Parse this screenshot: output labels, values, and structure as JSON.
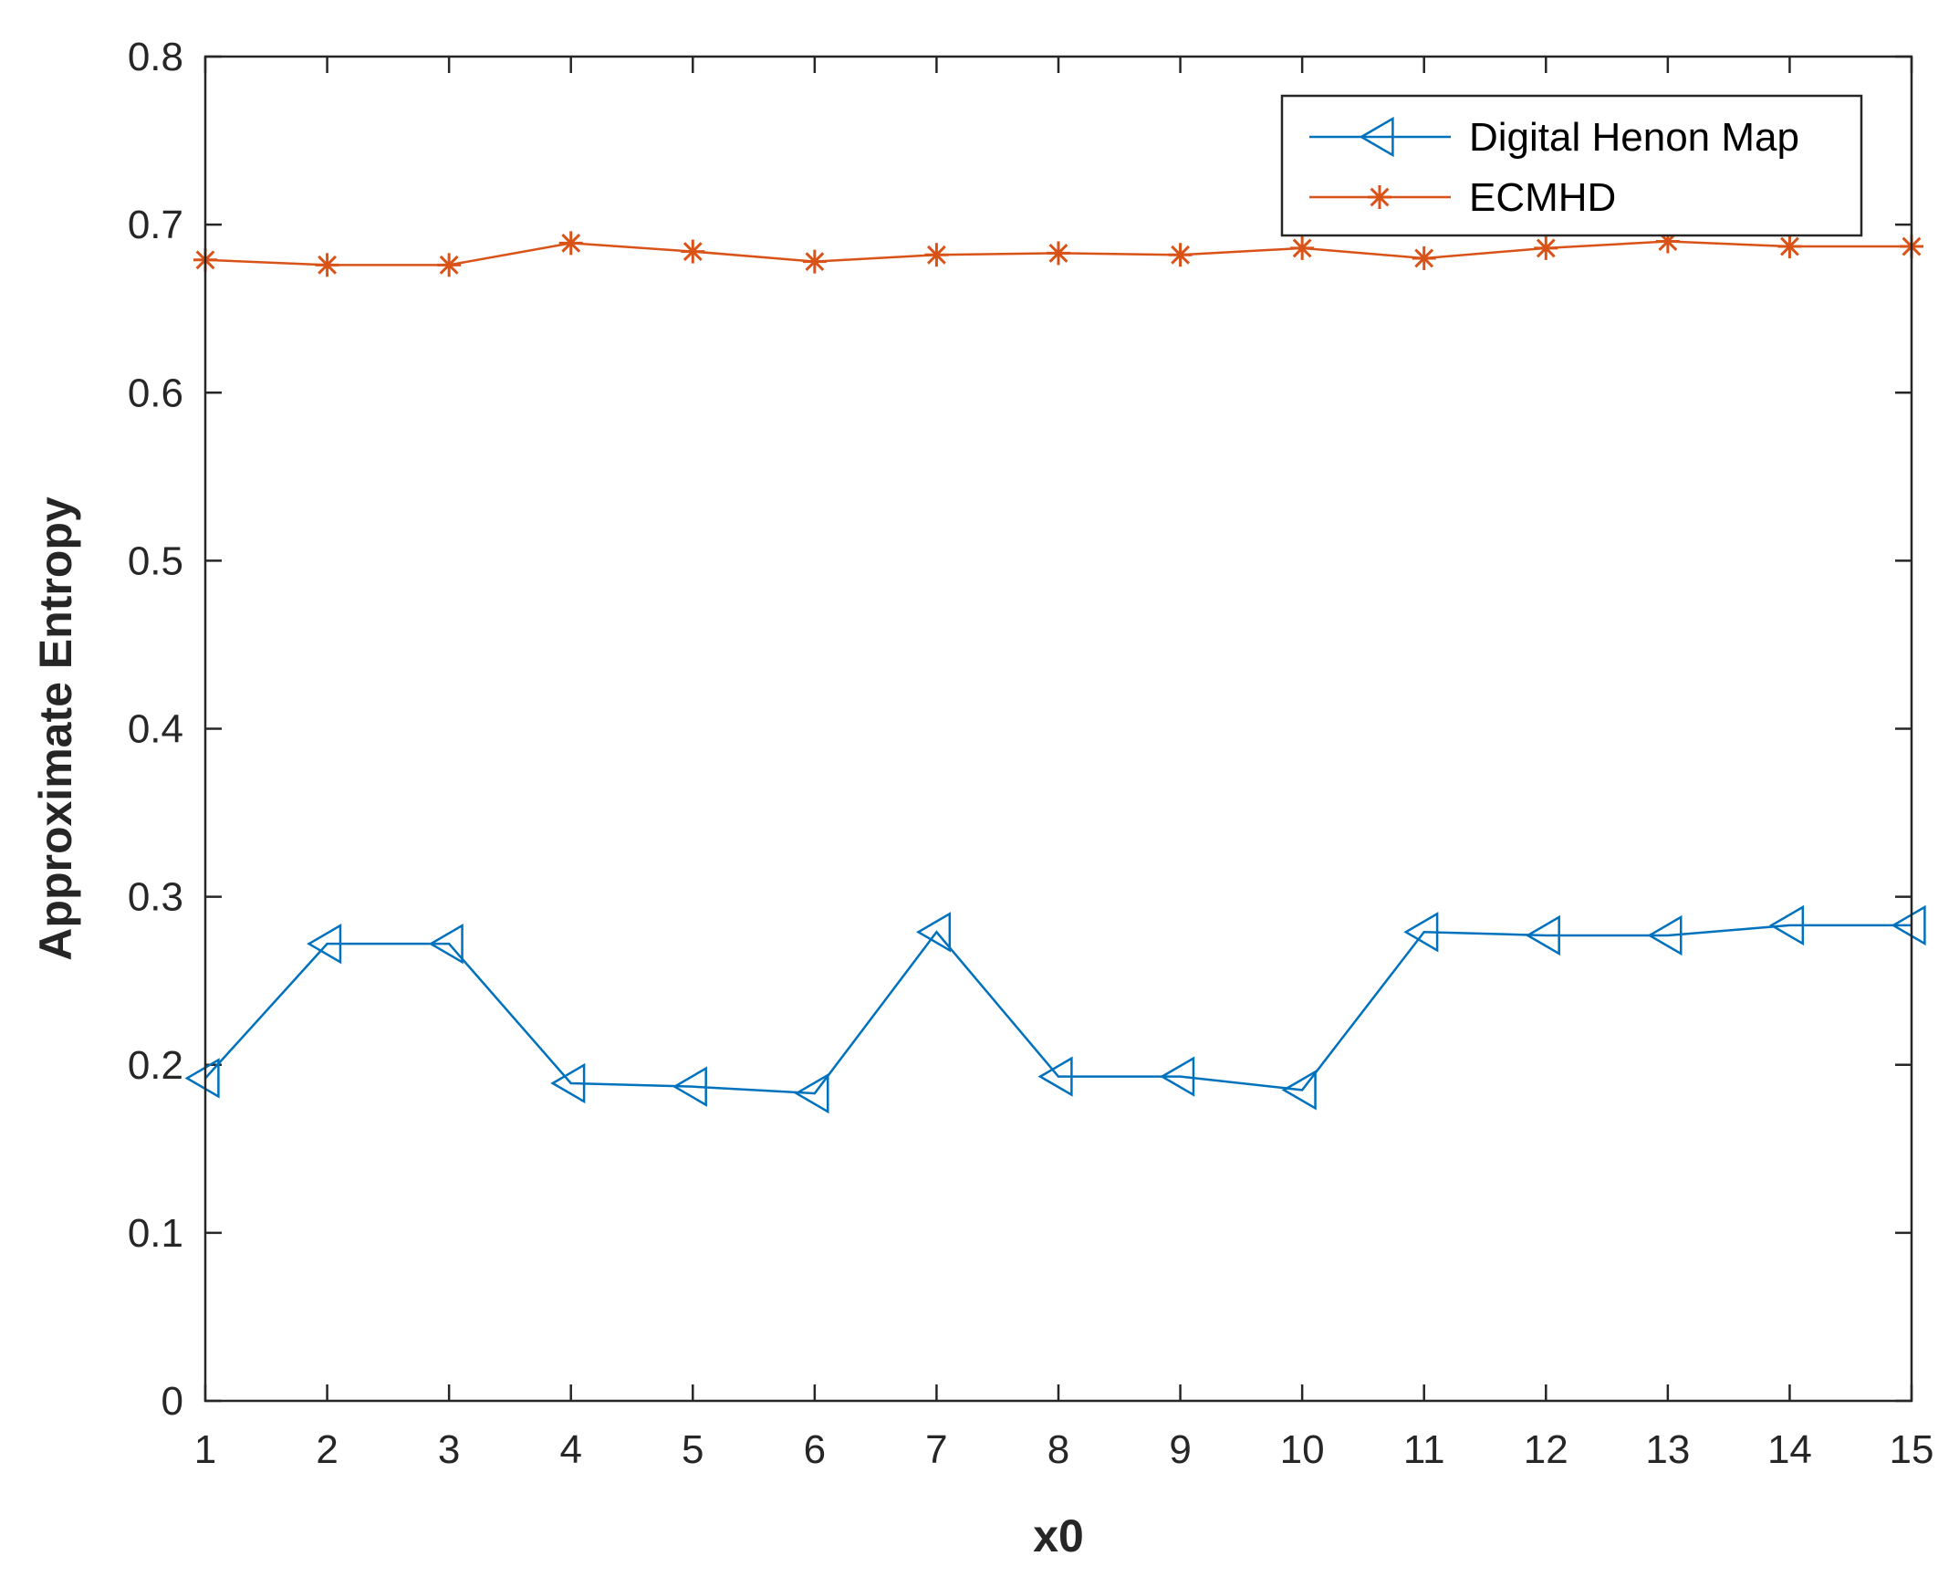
{
  "chart_data": {
    "type": "line",
    "title": "",
    "xlabel": "x0",
    "ylabel": "Approximate Entropy",
    "xlim": [
      1,
      15
    ],
    "ylim": [
      0,
      0.8
    ],
    "xticks": [
      1,
      2,
      3,
      4,
      5,
      6,
      7,
      8,
      9,
      10,
      11,
      12,
      13,
      14,
      15
    ],
    "yticks": [
      0,
      0.1,
      0.2,
      0.3,
      0.4,
      0.5,
      0.6,
      0.7,
      0.8
    ],
    "ytick_labels": [
      "0",
      "0.1",
      "0.2",
      "0.3",
      "0.4",
      "0.5",
      "0.6",
      "0.7",
      "0.8"
    ],
    "grid": false,
    "legend_position": "top-right",
    "x": [
      1,
      2,
      3,
      4,
      5,
      6,
      7,
      8,
      9,
      10,
      11,
      12,
      13,
      14,
      15
    ],
    "series": [
      {
        "name": "Digital Henon Map",
        "color": "#0072BD",
        "marker": "triangle-left",
        "values": [
          0.192,
          0.272,
          0.272,
          0.189,
          0.187,
          0.183,
          0.279,
          0.193,
          0.193,
          0.185,
          0.279,
          0.277,
          0.277,
          0.283,
          0.283
        ]
      },
      {
        "name": "ECMHD",
        "color": "#D95319",
        "marker": "asterisk",
        "values": [
          0.679,
          0.676,
          0.676,
          0.689,
          0.684,
          0.678,
          0.682,
          0.683,
          0.682,
          0.686,
          0.68,
          0.686,
          0.69,
          0.687,
          0.687
        ]
      }
    ]
  }
}
